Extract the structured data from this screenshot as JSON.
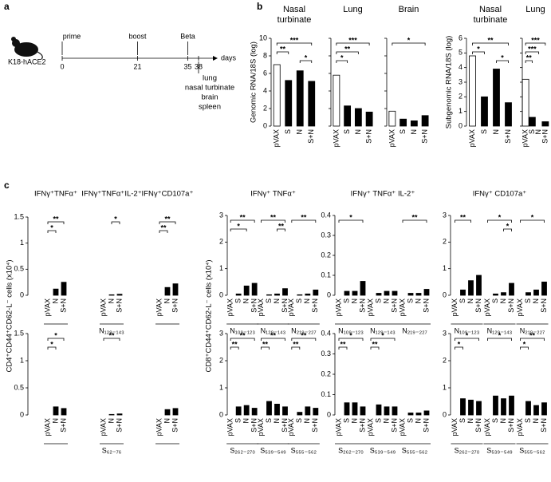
{
  "panel_labels": [
    "a",
    "b",
    "c"
  ],
  "timeline": {
    "subject": "K18-hACE2",
    "x": [
      0,
      21,
      35,
      38
    ],
    "events": [
      "prime",
      "boost",
      "Beta",
      null
    ],
    "unit": "days",
    "organs": [
      "lung",
      "nasal turbinate",
      "brain",
      "spleen"
    ]
  },
  "chart_data": [
    {
      "type": "bar",
      "title": [
        "Nasal",
        "turbinate"
      ],
      "ylabel": "Genomic RNA/18S (log)",
      "categories": [
        "pVAX",
        "S",
        "N",
        "S+N"
      ],
      "colors": [
        "#ffffff",
        "#000000",
        "#000000",
        "#000000"
      ],
      "ylim": [
        0,
        10
      ],
      "yticks": [
        0,
        2,
        4,
        6,
        8,
        10
      ],
      "groups": [
        {
          "values": [
            7,
            5.2,
            6.3,
            5.1
          ],
          "significance": [
            {
              "from": "pVAX",
              "to": "S+N",
              "label": "***"
            },
            {
              "from": "pVAX",
              "to": "S",
              "label": "**"
            },
            {
              "from": "N",
              "to": "S+N",
              "label": "*"
            }
          ]
        }
      ]
    },
    {
      "type": "bar",
      "title": [
        "Lung"
      ],
      "categories": [
        "pVAX",
        "S",
        "N",
        "S+N"
      ],
      "colors": [
        "#ffffff",
        "#000000",
        "#000000",
        "#000000"
      ],
      "ylim": [
        0,
        10
      ],
      "yticks": [
        0,
        2,
        4,
        6,
        8,
        10
      ],
      "tick_labels": false,
      "groups": [
        {
          "values": [
            5.8,
            2.3,
            2,
            1.6
          ],
          "significance": [
            {
              "from": "pVAX",
              "to": "S+N",
              "label": "***"
            },
            {
              "from": "pVAX",
              "to": "N",
              "label": "**"
            },
            {
              "from": "pVAX",
              "to": "S",
              "label": "*"
            }
          ]
        }
      ]
    },
    {
      "type": "bar",
      "title": [
        "Brain"
      ],
      "categories": [
        "pVAX",
        "S",
        "N",
        "S+N"
      ],
      "colors": [
        "#ffffff",
        "#000000",
        "#000000",
        "#000000"
      ],
      "ylim": [
        0,
        10
      ],
      "yticks": [
        0,
        2,
        4,
        6,
        8,
        10
      ],
      "tick_labels": false,
      "groups": [
        {
          "values": [
            1.7,
            0.8,
            0.6,
            1.2
          ],
          "significance": [
            {
              "from": "pVAX",
              "to": "S+N",
              "label": "*"
            }
          ]
        }
      ]
    },
    {
      "type": "bar",
      "title": [
        "Nasal",
        "turbinate"
      ],
      "ylabel": "Subgenomic RNA/18S (log)",
      "categories": [
        "pVAX",
        "S",
        "N",
        "S+N"
      ],
      "colors": [
        "#ffffff",
        "#000000",
        "#000000",
        "#000000"
      ],
      "ylim": [
        0,
        6
      ],
      "yticks": [
        0,
        1,
        2,
        3,
        4,
        5,
        6
      ],
      "groups": [
        {
          "values": [
            4.8,
            2,
            3.9,
            1.6
          ],
          "significance": [
            {
              "from": "pVAX",
              "to": "S+N",
              "label": "**"
            },
            {
              "from": "pVAX",
              "to": "S",
              "label": "*"
            },
            {
              "from": "N",
              "to": "S+N",
              "label": "*"
            }
          ]
        }
      ]
    },
    {
      "type": "bar",
      "title": [
        "Lung"
      ],
      "categories": [
        "pVAX",
        "S",
        "N",
        "S+N"
      ],
      "colors": [
        "#ffffff",
        "#000000",
        "#000000",
        "#000000"
      ],
      "ylim": [
        0,
        6
      ],
      "yticks": [
        0,
        1,
        2,
        3,
        4,
        5,
        6
      ],
      "tick_labels": false,
      "groups": [
        {
          "values": [
            3.2,
            0.6,
            0,
            0.3
          ],
          "significance": [
            {
              "from": "pVAX",
              "to": "S+N",
              "label": "***"
            },
            {
              "from": "pVAX",
              "to": "N",
              "label": "***"
            },
            {
              "from": "pVAX",
              "to": "S",
              "label": "**"
            }
          ]
        }
      ]
    },
    {
      "type": "bar",
      "ylabel": "CD4⁺CD44⁺CD62-L⁻ cells (x10⁴)",
      "categories": [
        "pVAX",
        "N",
        "S+N"
      ],
      "colors": [
        "#ffffff",
        "#000000",
        "#000000"
      ],
      "ylim": [
        0,
        1.5
      ],
      "yticks": [
        0,
        0.5,
        1,
        1.5
      ],
      "groups": [
        {
          "title": "IFNγ⁺TNFα⁺",
          "values": [
            0,
            0.12,
            0.25
          ],
          "significance": [
            {
              "from": "pVAX",
              "to": "S+N",
              "label": "**"
            },
            {
              "from": "pVAX",
              "to": "N",
              "label": "*"
            }
          ]
        },
        {
          "title": "IFNγ⁺TNFα⁺IL-2⁺",
          "label": "N₁₂₉₋₁₄₃",
          "values": [
            0,
            0.01,
            0.02
          ],
          "significance": [
            {
              "from": "N",
              "to": "S+N",
              "label": "*"
            }
          ]
        },
        {
          "title": "IFNγ⁺CD107a⁺",
          "values": [
            0,
            0.15,
            0.22
          ],
          "significance": [
            {
              "from": "pVAX",
              "to": "S+N",
              "label": "**"
            },
            {
              "from": "pVAX",
              "to": "N",
              "label": "**"
            }
          ]
        }
      ]
    },
    {
      "type": "bar",
      "title": "IFNγ⁺ TNFα⁺",
      "ylabel": "CD8⁺CD44⁺CD62-L⁻ cells (x10⁴)",
      "categories": [
        "pVAX",
        "S",
        "N",
        "S+N"
      ],
      "colors": [
        "#ffffff",
        "#000000",
        "#000000",
        "#000000"
      ],
      "ylim": [
        0,
        3
      ],
      "yticks": [
        0,
        1,
        2,
        3
      ],
      "groups": [
        {
          "label": "N₁₀₉₋₁₂₃",
          "values": [
            0,
            0.05,
            0.35,
            0.45
          ],
          "significance": [
            {
              "from": "pVAX",
              "to": "S+N",
              "label": "**"
            },
            {
              "from": "pVAX",
              "to": "N",
              "label": "*"
            }
          ]
        },
        {
          "label": "N₁₂₉₋₁₄₃",
          "values": [
            0,
            0.02,
            0.05,
            0.25
          ],
          "significance": [
            {
              "from": "pVAX",
              "to": "S+N",
              "label": "**"
            },
            {
              "from": "N",
              "to": "S+N",
              "label": "**"
            }
          ]
        },
        {
          "label": "N₂₁₉₋₂₂₇",
          "values": [
            0,
            0.02,
            0.05,
            0.2
          ],
          "significance": [
            {
              "from": "pVAX",
              "to": "S+N",
              "label": "**"
            }
          ]
        }
      ]
    },
    {
      "type": "bar",
      "title": "IFNγ⁺ TNFα⁺ IL-2⁺",
      "categories": [
        "pVAX",
        "S",
        "N",
        "S+N"
      ],
      "colors": [
        "#ffffff",
        "#000000",
        "#000000",
        "#000000"
      ],
      "ylim": [
        0,
        0.4
      ],
      "yticks": [
        0,
        0.1,
        0.2,
        0.3,
        0.4
      ],
      "groups": [
        {
          "label": "N₁₀₉₋₁₂₃",
          "values": [
            0,
            0.02,
            0.02,
            0.07
          ],
          "significance": [
            {
              "from": "pVAX",
              "to": "S+N",
              "label": "*"
            }
          ]
        },
        {
          "label": "N₁₂₉₋₁₄₃",
          "values": [
            0,
            0.01,
            0.02,
            0.02
          ],
          "significance": []
        },
        {
          "label": "N₂₁₉₋₂₂₇",
          "values": [
            0,
            0.01,
            0.01,
            0.03
          ],
          "significance": [
            {
              "from": "pVAX",
              "to": "S+N",
              "label": "**"
            }
          ]
        }
      ]
    },
    {
      "type": "bar",
      "title": "IFNγ⁺ CD107a⁺",
      "categories": [
        "pVAX",
        "S",
        "N",
        "S+N"
      ],
      "colors": [
        "#ffffff",
        "#000000",
        "#000000",
        "#000000"
      ],
      "ylim": [
        0,
        3
      ],
      "yticks": [
        0,
        1,
        2,
        3
      ],
      "groups": [
        {
          "label": "N₁₀₉₋₁₂₃",
          "values": [
            0,
            0.2,
            0.55,
            0.75
          ],
          "significance": [
            {
              "from": "pVAX",
              "to": "N",
              "label": "**"
            }
          ]
        },
        {
          "label": "N₁₂₉₋₁₄₃",
          "values": [
            0,
            0.05,
            0.1,
            0.45
          ],
          "significance": [
            {
              "from": "pVAX",
              "to": "S+N",
              "label": "*"
            },
            {
              "from": "N",
              "to": "S+N",
              "label": "*"
            }
          ]
        },
        {
          "label": "N₂₁₉₋₂₂₇",
          "values": [
            0,
            0.1,
            0.2,
            0.5
          ],
          "significance": [
            {
              "from": "pVAX",
              "to": "S+N",
              "label": "*"
            }
          ]
        }
      ]
    },
    {
      "type": "bar",
      "categories": [
        "pVAX",
        "N",
        "S+N"
      ],
      "colors": [
        "#ffffff",
        "#000000",
        "#000000"
      ],
      "ylim": [
        0,
        1.5
      ],
      "yticks": [
        0,
        0.5,
        1,
        1.5
      ],
      "groups": [
        {
          "values": [
            0,
            0.15,
            0.12
          ],
          "significance": [
            {
              "from": "pVAX",
              "to": "S+N",
              "label": "*"
            },
            {
              "from": "pVAX",
              "to": "N",
              "label": "*"
            }
          ]
        },
        {
          "label": "S₆₂₋₇₆",
          "values": [
            0,
            0.01,
            0.02
          ],
          "significance": [
            {
              "from": "pVAX",
              "to": "S+N",
              "label": "**"
            }
          ]
        },
        {
          "values": [
            0,
            0.1,
            0.12
          ],
          "significance": []
        }
      ]
    },
    {
      "type": "bar",
      "categories": [
        "pVAX",
        "S",
        "N",
        "S+N"
      ],
      "colors": [
        "#ffffff",
        "#000000",
        "#000000",
        "#000000"
      ],
      "ylim": [
        0,
        3
      ],
      "yticks": [
        0,
        1,
        2,
        3
      ],
      "groups": [
        {
          "label": "S₂₆₂₋₂₇₀",
          "values": [
            0,
            0.3,
            0.35,
            0.25
          ],
          "significance": [
            {
              "from": "pVAX",
              "to": "S+N",
              "label": "**"
            },
            {
              "from": "pVAX",
              "to": "S",
              "label": "**"
            }
          ]
        },
        {
          "label": "S₅₃₉₋₅₄₉",
          "values": [
            0,
            0.5,
            0.4,
            0.3
          ],
          "significance": [
            {
              "from": "pVAX",
              "to": "S+N",
              "label": "**"
            },
            {
              "from": "pVAX",
              "to": "S",
              "label": "**"
            }
          ]
        },
        {
          "label": "S₅₅₅₋₅₆₂",
          "values": [
            0,
            0.1,
            0.3,
            0.25
          ],
          "significance": [
            {
              "from": "pVAX",
              "to": "S+N",
              "label": "**"
            },
            {
              "from": "pVAX",
              "to": "S",
              "label": "**"
            }
          ]
        }
      ]
    },
    {
      "type": "bar",
      "categories": [
        "pVAX",
        "S",
        "N",
        "S+N"
      ],
      "colors": [
        "#ffffff",
        "#000000",
        "#000000",
        "#000000"
      ],
      "ylim": [
        0,
        0.4
      ],
      "yticks": [
        0,
        0.1,
        0.2,
        0.3,
        0.4
      ],
      "groups": [
        {
          "label": "S₂₆₂₋₂₇₀",
          "values": [
            0,
            0.06,
            0.06,
            0.04
          ],
          "significance": [
            {
              "from": "pVAX",
              "to": "S+N",
              "label": "*"
            },
            {
              "from": "pVAX",
              "to": "S",
              "label": "**"
            }
          ]
        },
        {
          "label": "S₅₃₉₋₅₄₉",
          "values": [
            0,
            0.05,
            0.04,
            0.04
          ],
          "significance": [
            {
              "from": "pVAX",
              "to": "S+N",
              "label": "*"
            },
            {
              "from": "pVAX",
              "to": "S",
              "label": "**"
            }
          ]
        },
        {
          "label": "S₅₅₅₋₅₆₂",
          "values": [
            0,
            0.01,
            0.01,
            0.02
          ],
          "significance": []
        }
      ]
    },
    {
      "type": "bar",
      "categories": [
        "pVAX",
        "S",
        "N",
        "S+N"
      ],
      "colors": [
        "#ffffff",
        "#000000",
        "#000000",
        "#000000"
      ],
      "ylim": [
        0,
        3
      ],
      "yticks": [
        0,
        1,
        2,
        3
      ],
      "groups": [
        {
          "label": "S₂₆₂₋₂₇₀",
          "values": [
            0,
            0.6,
            0.55,
            0.5
          ],
          "significance": [
            {
              "from": "pVAX",
              "to": "S+N",
              "label": "*"
            },
            {
              "from": "pVAX",
              "to": "S",
              "label": "*"
            }
          ]
        },
        {
          "label": "S₅₃₉₋₅₄₉",
          "values": [
            0,
            0.7,
            0.6,
            0.7
          ],
          "significance": [
            {
              "from": "pVAX",
              "to": "S+N",
              "label": "*"
            }
          ]
        },
        {
          "label": "S₅₅₅₋₅₆₂",
          "values": [
            0,
            0.5,
            0.35,
            0.45
          ],
          "significance": [
            {
              "from": "pVAX",
              "to": "S+N",
              "label": "**"
            },
            {
              "from": "pVAX",
              "to": "S",
              "label": "*"
            }
          ]
        }
      ]
    }
  ]
}
